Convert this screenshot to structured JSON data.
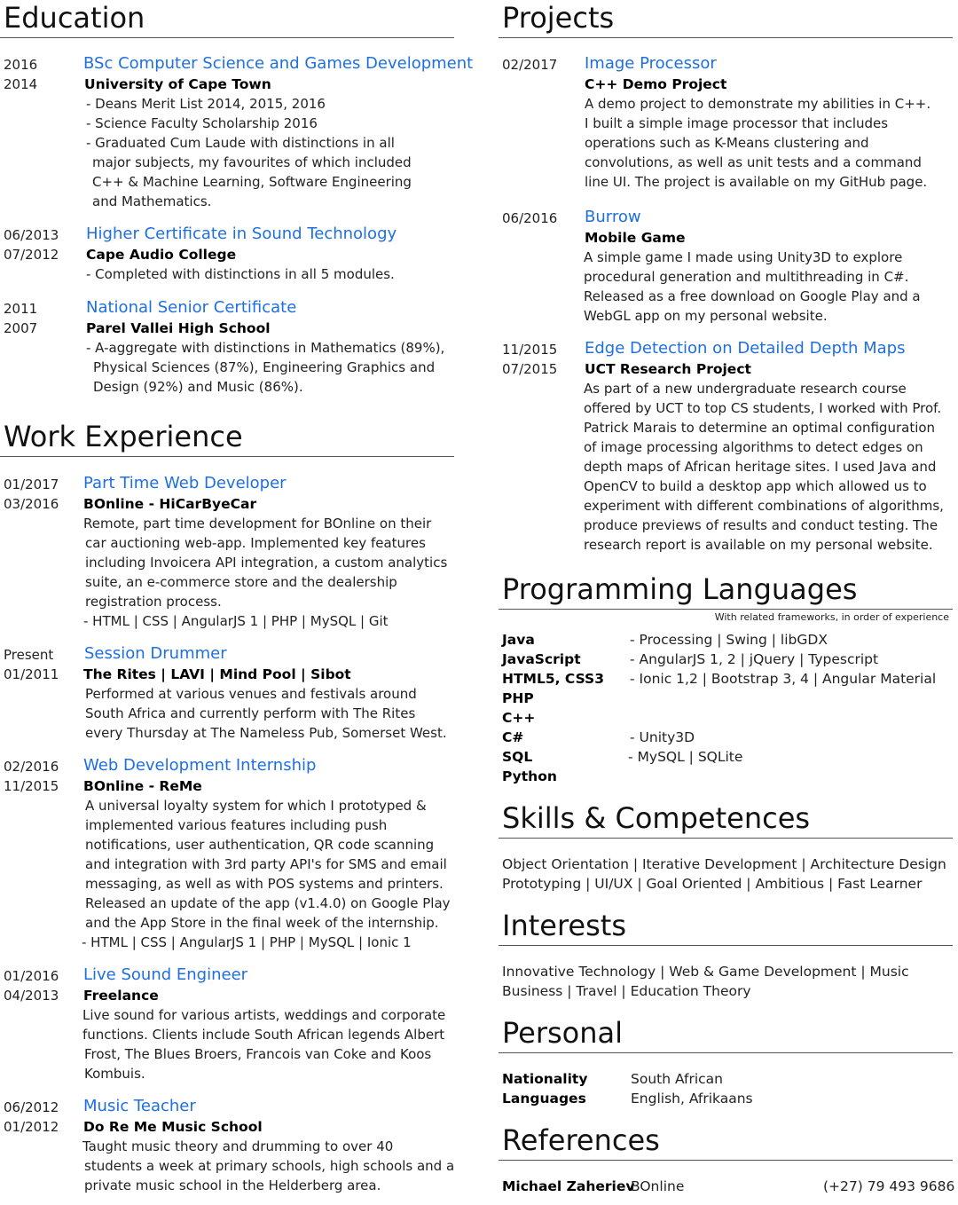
{
  "education": {
    "title": "Education",
    "entries": [
      {
        "date_end": "2016",
        "date_start": "2014",
        "title": "BSc Computer Science and Games Development",
        "org": "University of Cape Town",
        "lines": [
          "- Deans Merit List 2014, 2015, 2016",
          "- Science Faculty Scholarship 2016",
          "- Graduated Cum Laude with distinctions in all",
          "  major subjects, my favourites of which included",
          "  C++ & Machine Learning, Software Engineering",
          "  and Mathematics."
        ]
      },
      {
        "date_end": "06/2013",
        "date_start": "07/2012",
        "title": "Higher Certificate in Sound Technology",
        "org": "Cape Audio College",
        "lines": [
          "- Completed with distinctions in all 5 modules."
        ]
      },
      {
        "date_end": "2011",
        "date_start": "2007",
        "title": "National Senior Certificate",
        "org": "Parel Vallei High School",
        "lines": [
          "- A-aggregate with distinctions in Mathematics (89%),",
          "  Physical Sciences (87%), Engineering Graphics and",
          "  Design (92%) and Music (86%)."
        ]
      }
    ]
  },
  "work": {
    "title": "Work Experience",
    "entries": [
      {
        "date_end": "01/2017",
        "date_start": "03/2016",
        "title": "Part Time Web Developer",
        "org": "BOnline - HiCarByeCar",
        "lines": [
          "Remote, part time development for BOnline on their",
          " car auctioning web-app. Implemented key features",
          " including Invoicera API integration, a custom analytics",
          " suite, an e-commerce store and the dealership",
          " registration process.",
          "- HTML | CSS | AngularJS 1 | PHP | MySQL | Git"
        ]
      },
      {
        "date_end": "Present",
        "date_start": "01/2011",
        "title": "Session Drummer",
        "org": "The Rites | LAVI | Mind Pool | Sibot",
        "lines": [
          " Performed at various venues and festivals around",
          " South Africa and currently perform with The Rites",
          " every Thursday at The Nameless Pub, Somerset West."
        ]
      },
      {
        "date_end": "02/2016",
        "date_start": "11/2015",
        "title": "Web Development Internship",
        "org": "BOnline - ReMe",
        "lines": [
          " A universal loyalty system for which I prototyped &",
          " implemented various features including push",
          " notifications, user authentication, QR code scanning",
          " and integration with 3rd party API's  for SMS and email",
          " messaging, as well as with POS systems and printers.",
          " Released an update of the app (v1.4.0) on Google Play",
          " and the App Store in the final week of the internship.",
          "- HTML  | CSS | AngularJS 1 | PHP | MySQL  | Ionic 1"
        ]
      },
      {
        "date_end": "01/2016",
        "date_start": "04/2013",
        "title": "Live Sound Engineer",
        "org": "Freelance",
        "lines": [
          "Live sound for various artists, weddings and corporate",
          "functions. Clients include South African legends Albert",
          " Frost, The Blues Broers, Francois van Coke and Koos",
          " Kombuis."
        ]
      },
      {
        "date_end": "06/2012",
        "date_start": "01/2012",
        "title": "Music Teacher",
        "org": "Do Re Me Music School",
        "lines": [
          "Taught music theory and drumming to over 40",
          " students a week at primary schools, high schools and a",
          " private music school in the Helderberg area."
        ]
      }
    ]
  },
  "projects": {
    "title": "Projects",
    "entries": [
      {
        "date_end": "02/2017",
        "date_start": "",
        "title": "Image Processor",
        "org": "C++ Demo Project",
        "lines": [
          " A demo project to demonstrate my abilities in C++.",
          " I built a simple image processor that includes",
          " operations such as K-Means clustering and",
          " convolutions, as well as unit tests and a command",
          " line UI. The project is available on my GitHub page."
        ]
      },
      {
        "date_end": "06/2016",
        "date_start": "",
        "title": "Burrow",
        "org": "Mobile Game",
        "lines": [
          " A simple game I made using Unity3D to explore",
          "procedural generation and multithreading in C#.",
          "Released as a free download on Google Play and a",
          "WebGL app on my personal website."
        ]
      },
      {
        "date_end": "11/2015",
        "date_start": "07/2015",
        "title": "Edge Detection on Detailed Depth Maps",
        "org": "UCT Research Project",
        "lines": [
          " As part of a new undergraduate research course",
          "offered by UCT to top CS students, I worked with Prof.",
          "Patrick Marais to determine an optimal configuration",
          "of image processing algorithms to detect edges on",
          "depth maps of African heritage sites. I used Java and",
          "OpenCV to build a desktop app which allowed us to",
          "experiment with different combinations of algorithms,",
          "produce previews of results and conduct testing. The",
          "research report is available on my personal website."
        ]
      }
    ]
  },
  "languages": {
    "title": "Programming Languages",
    "note": "With related frameworks, in order of experience",
    "rows": [
      {
        "name": "Java",
        "frameworks": "- Processing | Swing | libGDX"
      },
      {
        "name": "JavaScript",
        "frameworks": "- AngularJS 1, 2 | jQuery | Typescript"
      },
      {
        "name": "HTML5, CSS3",
        "frameworks": "- Ionic 1,2 | Bootstrap 3, 4 | Angular Material"
      },
      {
        "name": "PHP",
        "frameworks": ""
      },
      {
        "name": "C++",
        "frameworks": ""
      },
      {
        "name": "C#",
        "frameworks": "- Unity3D"
      },
      {
        "name": "SQL",
        "frameworks": "- MySQL | SQLite"
      },
      {
        "name": "Python",
        "frameworks": ""
      }
    ]
  },
  "skills": {
    "title": "Skills & Competences",
    "lines": [
      "Object Orientation | Iterative Development | Architecture Design",
      "Prototyping | UI/UX | Goal Oriented | Ambitious | Fast Learner"
    ]
  },
  "interests": {
    "title": "Interests",
    "lines": [
      "Innovative Technology | Web & Game Development | Music",
      "Business | Travel | Education Theory"
    ]
  },
  "personal": {
    "title": "Personal",
    "nationality_label": "Nationality",
    "nationality_value": "South African",
    "languages_label": "Languages",
    "languages_value": "English, Afrikaans"
  },
  "references": {
    "title": "References",
    "name": "Michael Zaheriev",
    "company": "BOnline",
    "phone": "(+27) 79 493 9686"
  }
}
